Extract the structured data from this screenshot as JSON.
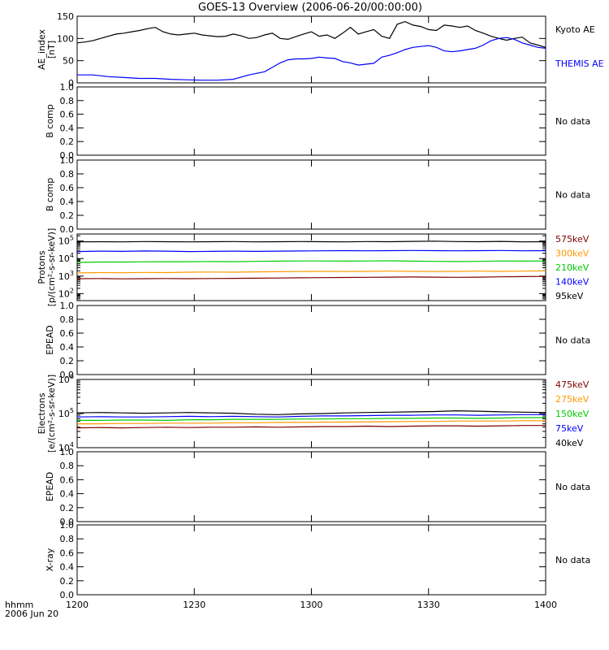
{
  "title": "GOES-13 Overview (2006-06-20/00:00:00)",
  "x_axis": {
    "ticks": [
      "1200",
      "1230",
      "1300",
      "1330",
      "1400"
    ],
    "footer_line1": "hhmm",
    "footer_line2": "2006 Jun 20"
  },
  "chart_data": [
    {
      "type": "line",
      "ylabel_line1": "AE_index",
      "ylabel_line2": "[nT]",
      "ylim": [
        0,
        150
      ],
      "yticks": [
        "0",
        "50",
        "100",
        "150"
      ],
      "x_range_minutes": [
        0,
        120
      ],
      "series": [
        {
          "name": "Kyoto AE",
          "color": "#000000",
          "x": [
            0,
            2,
            4,
            6,
            8,
            10,
            12,
            14,
            16,
            18,
            20,
            22,
            24,
            26,
            28,
            30,
            32,
            34,
            36,
            38,
            40,
            42,
            44,
            46,
            48,
            50,
            52,
            54,
            56,
            58,
            60,
            62,
            64,
            66,
            68,
            70,
            72,
            74,
            76,
            78,
            80,
            82,
            84,
            86,
            88,
            90,
            92,
            94,
            96,
            98,
            100,
            102,
            104,
            106,
            108,
            110,
            112,
            114,
            116,
            118,
            120
          ],
          "values": [
            90,
            92,
            95,
            100,
            105,
            110,
            112,
            115,
            118,
            122,
            125,
            115,
            110,
            108,
            110,
            112,
            108,
            106,
            104,
            105,
            110,
            106,
            100,
            102,
            108,
            112,
            100,
            98,
            104,
            110,
            115,
            105,
            108,
            100,
            112,
            125,
            110,
            115,
            120,
            105,
            100,
            132,
            138,
            130,
            127,
            120,
            118,
            130,
            128,
            125,
            128,
            118,
            112,
            105,
            100,
            96,
            100,
            103,
            90,
            85,
            80
          ],
          "label_color": "#000000"
        },
        {
          "name": "THEMIS AE",
          "color": "#0000ff",
          "x": [
            0,
            4,
            8,
            12,
            16,
            20,
            24,
            28,
            32,
            36,
            40,
            44,
            48,
            50,
            52,
            54,
            56,
            58,
            60,
            62,
            64,
            66,
            68,
            70,
            72,
            74,
            76,
            78,
            80,
            82,
            84,
            86,
            88,
            90,
            92,
            94,
            96,
            98,
            100,
            102,
            104,
            106,
            108,
            110,
            112,
            114,
            116,
            118,
            120
          ],
          "values": [
            18,
            18,
            14,
            12,
            10,
            10,
            8,
            7,
            6,
            6,
            8,
            18,
            25,
            35,
            45,
            52,
            54,
            54,
            55,
            58,
            56,
            55,
            48,
            45,
            40,
            42,
            44,
            58,
            62,
            68,
            75,
            80,
            82,
            84,
            80,
            72,
            70,
            72,
            75,
            78,
            85,
            95,
            100,
            102,
            98,
            90,
            85,
            80,
            78
          ],
          "label_color": "#0000ff"
        }
      ],
      "right_labels": [
        {
          "text": "Kyoto AE",
          "color": "#000000"
        },
        {
          "text": "THEMIS AE",
          "color": "#0000ff"
        }
      ]
    },
    {
      "type": "line",
      "ylabel_line1": "B comp",
      "ylabel_line2": "",
      "ylim": [
        0,
        1
      ],
      "yticks": [
        "0.0",
        "0.2",
        "0.4",
        "0.6",
        "0.8",
        "1.0"
      ],
      "series": [],
      "right_labels": [
        {
          "text": "No data",
          "color": "#000000"
        }
      ]
    },
    {
      "type": "line",
      "ylabel_line1": "B comp",
      "ylabel_line2": "",
      "ylim": [
        0,
        1
      ],
      "yticks": [
        "0.0",
        "0.2",
        "0.4",
        "0.6",
        "0.8",
        "1.0"
      ],
      "series": [],
      "right_labels": [
        {
          "text": "No data",
          "color": "#000000"
        }
      ]
    },
    {
      "type": "line",
      "scale": "log",
      "ylabel_line1": "Protons",
      "ylabel_line2": "[p/(cm²-s-sr-keV)]",
      "ylim_log10": [
        1.6,
        5.4
      ],
      "yticks_exp": [
        2,
        3,
        4,
        5
      ],
      "series": [
        {
          "name": "95keV",
          "color": "#000000",
          "log10_values": [
            4.95,
            4.96,
            4.95,
            4.97,
            4.96,
            4.95,
            4.96,
            4.97,
            4.95,
            4.96,
            4.97,
            4.96,
            4.95,
            4.97,
            4.96,
            4.98,
            4.99,
            4.97,
            4.96,
            4.98,
            4.95,
            4.96
          ]
        },
        {
          "name": "140keV",
          "color": "#0000ff",
          "log10_values": [
            4.4,
            4.42,
            4.41,
            4.43,
            4.42,
            4.4,
            4.41,
            4.42,
            4.41,
            4.42,
            4.43,
            4.44,
            4.45,
            4.44,
            4.45,
            4.46,
            4.45,
            4.44,
            4.45,
            4.46,
            4.44,
            4.45
          ]
        },
        {
          "name": "210keV",
          "color": "#00cc00",
          "log10_values": [
            3.78,
            3.8,
            3.8,
            3.81,
            3.82,
            3.82,
            3.83,
            3.82,
            3.84,
            3.85,
            3.86,
            3.86,
            3.85,
            3.86,
            3.87,
            3.85,
            3.84,
            3.83,
            3.84,
            3.86,
            3.85,
            3.86
          ]
        },
        {
          "name": "300keV",
          "color": "#ff9900",
          "log10_values": [
            3.18,
            3.2,
            3.19,
            3.21,
            3.2,
            3.22,
            3.23,
            3.22,
            3.24,
            3.25,
            3.26,
            3.27,
            3.26,
            3.27,
            3.28,
            3.27,
            3.26,
            3.27,
            3.28,
            3.27,
            3.28,
            3.3
          ]
        },
        {
          "name": "575keV",
          "color": "#800000",
          "log10_values": [
            2.85,
            2.86,
            2.84,
            2.85,
            2.86,
            2.85,
            2.86,
            2.87,
            2.88,
            2.89,
            2.9,
            2.91,
            2.92,
            2.93,
            2.94,
            2.95,
            2.94,
            2.93,
            2.94,
            2.96,
            2.97,
            2.98
          ]
        }
      ],
      "right_labels": [
        {
          "text": "575keV",
          "color": "#800000"
        },
        {
          "text": "300keV",
          "color": "#ff9900"
        },
        {
          "text": "210keV",
          "color": "#00cc00"
        },
        {
          "text": "140keV",
          "color": "#0000ff"
        },
        {
          "text": "95keV",
          "color": "#000000"
        }
      ]
    },
    {
      "type": "line",
      "ylabel_line1": "EPEAD",
      "ylabel_line2": "",
      "ylim": [
        0,
        1
      ],
      "yticks": [
        "0.0",
        "0.2",
        "0.4",
        "0.6",
        "0.8",
        "1.0"
      ],
      "series": [],
      "right_labels": [
        {
          "text": "No data",
          "color": "#000000"
        }
      ]
    },
    {
      "type": "line",
      "scale": "log",
      "ylabel_line1": "Electrons",
      "ylabel_line2": "[e/(cm²-s-sr-keV)]",
      "ylim_log10": [
        4.0,
        6.0
      ],
      "yticks_exp": [
        4,
        5,
        6
      ],
      "series": [
        {
          "name": "40keV",
          "color": "#000000",
          "log10_values": [
            5.02,
            5.03,
            5.02,
            5.01,
            5.02,
            5.03,
            5.02,
            5.01,
            4.98,
            4.97,
            4.99,
            5.0,
            5.02,
            5.03,
            5.04,
            5.05,
            5.06,
            5.08,
            5.07,
            5.05,
            5.04,
            5.03
          ]
        },
        {
          "name": "75keV",
          "color": "#0000ff",
          "log10_values": [
            4.9,
            4.91,
            4.9,
            4.9,
            4.91,
            4.92,
            4.91,
            4.92,
            4.91,
            4.9,
            4.92,
            4.93,
            4.93,
            4.94,
            4.95,
            4.95,
            4.96,
            4.96,
            4.95,
            4.96,
            4.97,
            4.97
          ]
        },
        {
          "name": "150keV",
          "color": "#00cc00",
          "log10_values": [
            4.8,
            4.8,
            4.81,
            4.81,
            4.8,
            4.82,
            4.82,
            4.83,
            4.83,
            4.83,
            4.84,
            4.84,
            4.85,
            4.85,
            4.86,
            4.86,
            4.87,
            4.87,
            4.86,
            4.87,
            4.88,
            4.88
          ]
        },
        {
          "name": "275keV",
          "color": "#ff9900",
          "log10_values": [
            4.7,
            4.7,
            4.71,
            4.71,
            4.72,
            4.72,
            4.72,
            4.73,
            4.73,
            4.74,
            4.74,
            4.75,
            4.75,
            4.76,
            4.76,
            4.77,
            4.77,
            4.78,
            4.78,
            4.78,
            4.79,
            4.79
          ]
        },
        {
          "name": "475keV",
          "color": "#800000",
          "log10_values": [
            4.58,
            4.59,
            4.58,
            4.59,
            4.6,
            4.59,
            4.6,
            4.6,
            4.61,
            4.6,
            4.61,
            4.62,
            4.62,
            4.63,
            4.62,
            4.63,
            4.64,
            4.64,
            4.63,
            4.64,
            4.65,
            4.65
          ]
        }
      ],
      "right_labels": [
        {
          "text": "475keV",
          "color": "#800000"
        },
        {
          "text": "275keV",
          "color": "#ff9900"
        },
        {
          "text": "150keV",
          "color": "#00cc00"
        },
        {
          "text": "75keV",
          "color": "#0000ff"
        },
        {
          "text": "40keV",
          "color": "#000000"
        }
      ]
    },
    {
      "type": "line",
      "ylabel_line1": "EPEAD",
      "ylabel_line2": "",
      "ylim": [
        0,
        1
      ],
      "yticks": [
        "0.0",
        "0.2",
        "0.4",
        "0.6",
        "0.8",
        "1.0"
      ],
      "series": [],
      "right_labels": [
        {
          "text": "No data",
          "color": "#000000"
        }
      ]
    },
    {
      "type": "line",
      "ylabel_line1": "X-ray",
      "ylabel_line2": "",
      "ylim": [
        0,
        1
      ],
      "yticks": [
        "0.0",
        "0.2",
        "0.4",
        "0.6",
        "0.8",
        "1.0"
      ],
      "series": [],
      "right_labels": [
        {
          "text": "No data",
          "color": "#000000"
        }
      ]
    }
  ]
}
